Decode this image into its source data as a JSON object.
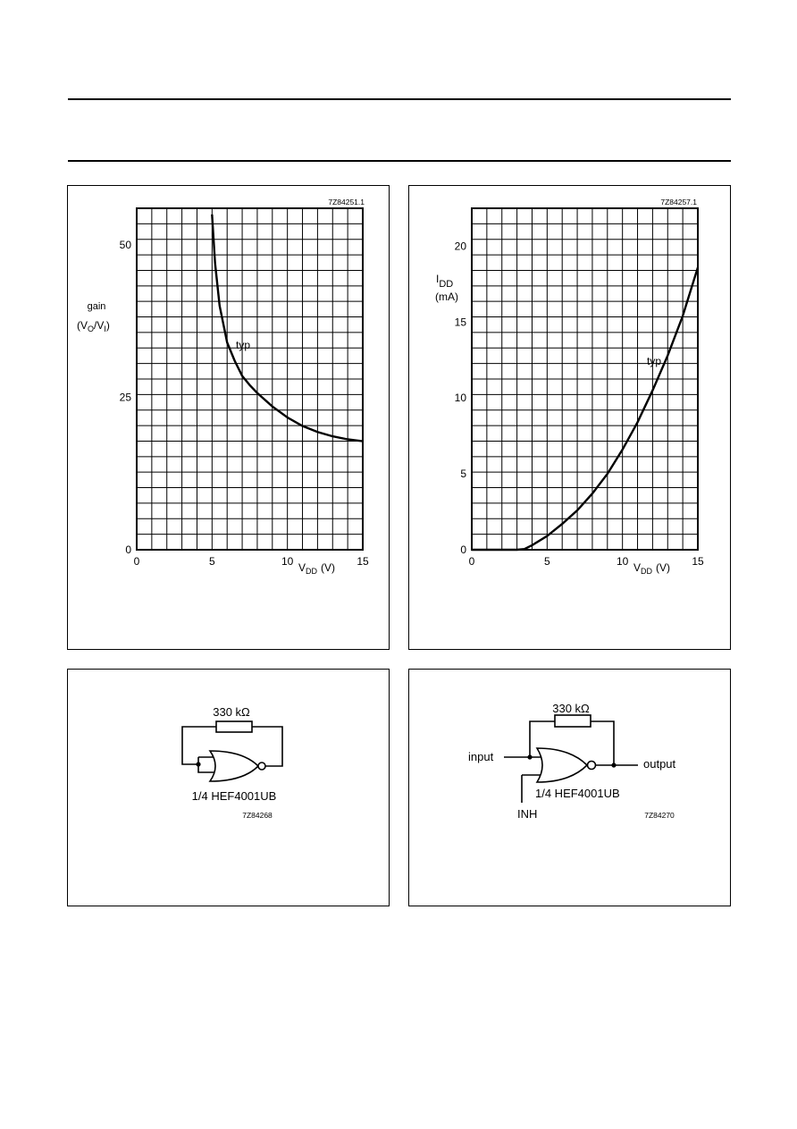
{
  "page": {
    "figures": [
      {
        "id": "7Z84251.1",
        "ylabel_line1": "gain",
        "ylabel_paren_open": "(V",
        "ylabel_sub1": "O",
        "ylabel_slash": "/V",
        "ylabel_sub2": "I",
        "ylabel_paren_close": ")",
        "xlabel_main": "V",
        "xlabel_sub": "DD",
        "xlabel_unit": "(V)",
        "curve_label": "typ",
        "xticks": [
          "0",
          "5",
          "10",
          "15"
        ],
        "yticks": [
          "0",
          "25",
          "50"
        ]
      },
      {
        "id": "7Z84257.1",
        "ylabel_main": "I",
        "ylabel_sub": "DD",
        "ylabel_unit": "(mA)",
        "xlabel_main": "V",
        "xlabel_sub": "DD",
        "xlabel_unit": "(V)",
        "curve_label": "typ",
        "xticks": [
          "0",
          "5",
          "10",
          "15"
        ],
        "yticks": [
          "0",
          "5",
          "10",
          "15",
          "20"
        ]
      }
    ],
    "circuits": [
      {
        "id": "7Z84268",
        "resistor": "330 kΩ",
        "part": "1/4 HEF4001UB"
      },
      {
        "id": "7Z84270",
        "resistor": "330 kΩ",
        "part": "1/4 HEF4001UB",
        "input": "input",
        "output": "output",
        "inhibit": "INH"
      }
    ]
  },
  "chart_data": [
    {
      "type": "line",
      "title": "",
      "xlabel": "VDD (V)",
      "ylabel": "gain (VO/VI)",
      "xlim": [
        0,
        15
      ],
      "ylim": [
        0,
        56
      ],
      "grid": true,
      "series": [
        {
          "name": "typ",
          "x": [
            5.0,
            5.2,
            5.5,
            6.0,
            6.5,
            7.0,
            7.5,
            8.0,
            9.0,
            10.0,
            11.0,
            12.0,
            13.0,
            14.0,
            15.0
          ],
          "y": [
            55.0,
            47.0,
            40.0,
            34.0,
            31.0,
            28.5,
            27.0,
            25.7,
            23.5,
            21.7,
            20.3,
            19.3,
            18.6,
            18.1,
            17.8
          ]
        }
      ]
    },
    {
      "type": "line",
      "title": "",
      "xlabel": "VDD (V)",
      "ylabel": "IDD (mA)",
      "xlim": [
        0,
        15
      ],
      "ylim": [
        0,
        22.5
      ],
      "grid": true,
      "series": [
        {
          "name": "typ",
          "x": [
            0,
            2.0,
            3.0,
            3.5,
            4.0,
            5.0,
            6.0,
            7.0,
            8.0,
            9.0,
            10.0,
            11.0,
            12.0,
            13.0,
            14.0,
            15.0
          ],
          "y": [
            0,
            0,
            0,
            0.05,
            0.3,
            0.9,
            1.7,
            2.6,
            3.7,
            5.0,
            6.6,
            8.4,
            10.5,
            12.8,
            15.4,
            18.6
          ]
        }
      ]
    }
  ]
}
